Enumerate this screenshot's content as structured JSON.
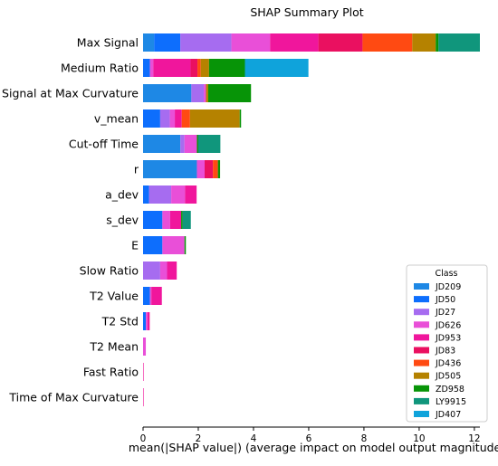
{
  "chart_data": {
    "type": "bar",
    "orientation": "horizontal",
    "stacked": true,
    "title": "SHAP Summary Plot",
    "xlabel": "mean(|SHAP value|) (average impact on model output magnitude)",
    "ylabel": "",
    "xlim": [
      0,
      12.2
    ],
    "xticks": [
      0,
      2,
      4,
      6,
      8,
      10,
      12
    ],
    "grid": false,
    "legend": {
      "title": "Class",
      "placement": "lower-right"
    },
    "categories": [
      "Max Signal",
      "Medium Ratio",
      "Signal at Max Curvature",
      "v_mean",
      "Cut-off Time",
      "r",
      "a_dev",
      "s_dev",
      "E",
      "Slow Ratio",
      "T2 Value",
      "T2 Std",
      "T2 Mean",
      "Fast Ratio",
      "Time of Max Curvature"
    ],
    "series": [
      {
        "name": "JD209",
        "color": "#1e88e5",
        "values": [
          0.4,
          0,
          1.75,
          0,
          1.35,
          1.95,
          0,
          0,
          0,
          0,
          0,
          0,
          0,
          0,
          0
        ]
      },
      {
        "name": "JD50",
        "color": "#0d6efd",
        "values": [
          0.95,
          0.25,
          0,
          0.62,
          0,
          0,
          0.22,
          0.7,
          0.7,
          0,
          0.25,
          0.1,
          0,
          0,
          0
        ]
      },
      {
        "name": "JD27",
        "color": "#a66cf0",
        "values": [
          1.85,
          0,
          0.45,
          0.35,
          0.15,
          0,
          0.8,
          0,
          0,
          0.62,
          0,
          0,
          0,
          0,
          0
        ]
      },
      {
        "name": "JD626",
        "color": "#e94fd8",
        "values": [
          1.4,
          0.12,
          0.08,
          0.18,
          0.45,
          0.28,
          0.5,
          0.28,
          0.8,
          0.25,
          0.05,
          0.06,
          0.1,
          0,
          0
        ]
      },
      {
        "name": "JD953",
        "color": "#f0169c",
        "values": [
          1.75,
          1.35,
          0,
          0.25,
          0,
          0,
          0.42,
          0.4,
          0,
          0.35,
          0.38,
          0.08,
          0,
          0.02,
          0.02
        ]
      },
      {
        "name": "JD83",
        "color": "#ea1060",
        "values": [
          1.6,
          0.25,
          0,
          0,
          0,
          0.3,
          0,
          0,
          0,
          0,
          0,
          0,
          0,
          0,
          0
        ]
      },
      {
        "name": "JD436",
        "color": "#ff4a12",
        "values": [
          1.8,
          0.12,
          0,
          0.3,
          0,
          0.18,
          0,
          0,
          0,
          0,
          0,
          0,
          0,
          0,
          0
        ]
      },
      {
        "name": "JD505",
        "color": "#b58200",
        "values": [
          0.85,
          0.3,
          0.08,
          1.8,
          0,
          0,
          0,
          0,
          0,
          0,
          0,
          0,
          0,
          0,
          0
        ]
      },
      {
        "name": "ZD958",
        "color": "#079407",
        "values": [
          0.1,
          1.3,
          1.55,
          0.05,
          0.05,
          0.08,
          0,
          0.05,
          0.05,
          0,
          0,
          0,
          0,
          0,
          0
        ]
      },
      {
        "name": "LY9915",
        "color": "#10967c",
        "values": [
          1.5,
          0,
          0,
          0,
          0.8,
          0,
          0,
          0.3,
          0,
          0,
          0,
          0,
          0,
          0,
          0
        ]
      },
      {
        "name": "JD407",
        "color": "#0fa3db",
        "values": [
          0,
          2.3,
          0,
          0,
          0,
          0,
          0,
          0,
          0,
          0,
          0,
          0,
          0,
          0,
          0
        ]
      }
    ]
  }
}
